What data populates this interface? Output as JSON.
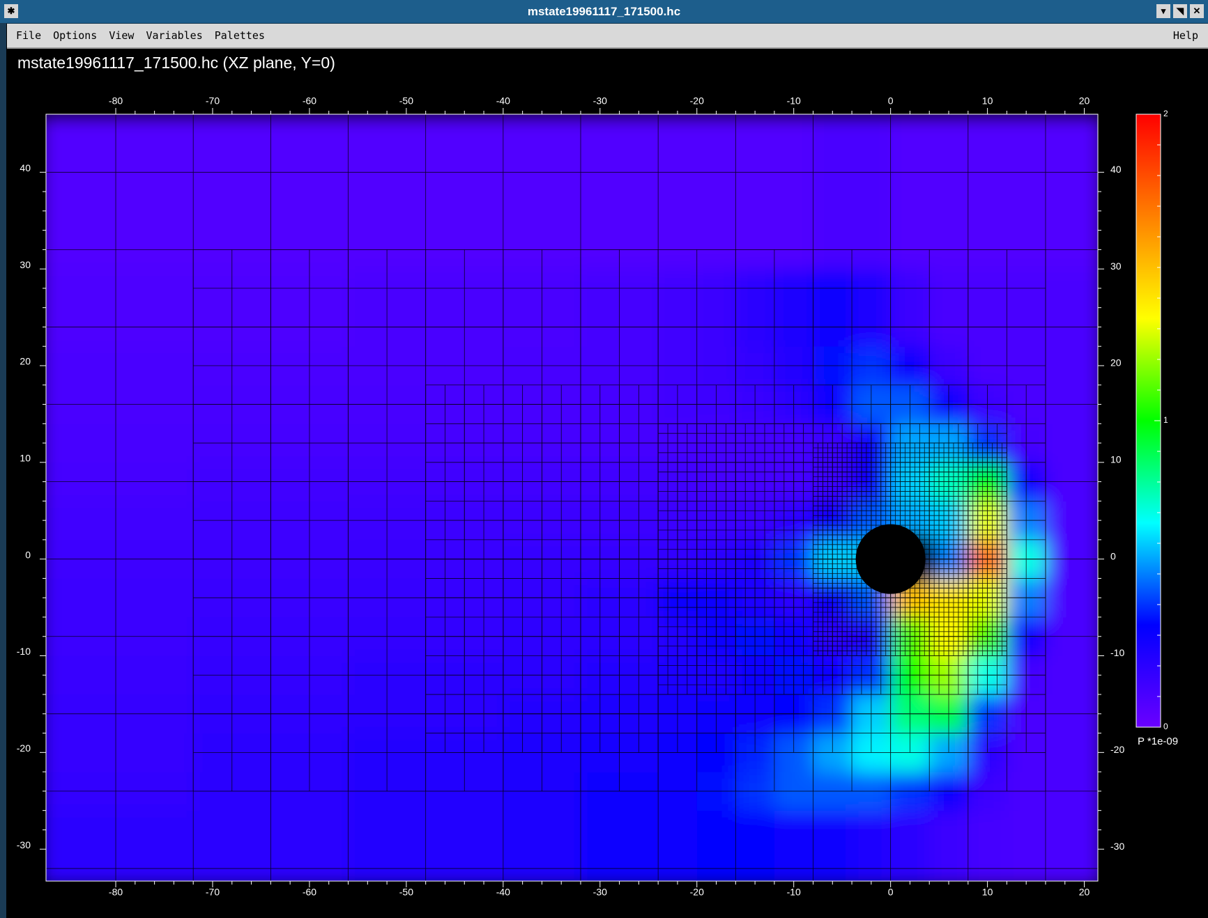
{
  "window": {
    "title": "mstate19961117_171500.hc"
  },
  "menu": {
    "items": [
      "File",
      "Options",
      "View",
      "Variables",
      "Palettes"
    ],
    "help": "Help"
  },
  "chart_data": {
    "type": "heatmap",
    "title": "mstate19961117_171500.hc (XZ plane, Y=0)",
    "x": [
      -88,
      -72,
      -56,
      -40,
      -32,
      -24,
      -20,
      -16,
      -12,
      -8,
      -4,
      0,
      4,
      8,
      12,
      16,
      22
    ],
    "y": [
      -34,
      -26,
      -22,
      -18,
      -14,
      -10,
      -6,
      -2,
      2,
      6,
      10,
      14,
      18,
      22,
      30,
      46
    ],
    "values": [
      [
        0.2,
        0.2,
        0.22,
        0.25,
        0.28,
        0.3,
        0.32,
        0.32,
        0.3,
        0.28,
        0.25,
        0.2,
        0.15,
        0.12,
        0.1,
        0.1
      ],
      [
        0.18,
        0.2,
        0.22,
        0.25,
        0.28,
        0.3,
        0.35,
        0.4,
        0.45,
        0.45,
        0.45,
        0.4,
        0.3,
        0.15,
        0.1,
        0.1
      ],
      [
        0.17,
        0.2,
        0.22,
        0.24,
        0.26,
        0.3,
        0.32,
        0.38,
        0.45,
        0.55,
        0.65,
        0.7,
        0.55,
        0.2,
        0.1,
        0.1
      ],
      [
        0.17,
        0.19,
        0.2,
        0.22,
        0.24,
        0.26,
        0.28,
        0.3,
        0.32,
        0.4,
        0.6,
        0.85,
        0.9,
        0.4,
        0.1,
        0.1
      ],
      [
        0.16,
        0.18,
        0.2,
        0.2,
        0.22,
        0.24,
        0.25,
        0.3,
        0.35,
        0.3,
        0.4,
        1.0,
        1.2,
        0.7,
        0.12,
        0.1
      ],
      [
        0.15,
        0.17,
        0.18,
        0.19,
        0.2,
        0.22,
        0.3,
        0.35,
        0.3,
        0.2,
        0.25,
        1.1,
        1.35,
        1.1,
        0.3,
        0.1
      ],
      [
        0.15,
        0.16,
        0.17,
        0.18,
        0.2,
        0.3,
        0.3,
        0.25,
        0.2,
        0.3,
        0.45,
        1.5,
        1.4,
        1.3,
        0.5,
        0.1
      ],
      [
        0.14,
        0.15,
        0.16,
        0.17,
        0.17,
        0.18,
        0.2,
        0.25,
        0.4,
        0.6,
        0.6,
        null,
        0.5,
        1.7,
        0.7,
        0.1
      ],
      [
        0.13,
        0.14,
        0.15,
        0.15,
        0.15,
        0.15,
        0.15,
        0.15,
        0.2,
        0.3,
        0.45,
        0.55,
        0.6,
        1.3,
        0.5,
        0.1
      ],
      [
        0.12,
        0.13,
        0.13,
        0.13,
        0.13,
        0.13,
        0.12,
        0.12,
        0.12,
        0.15,
        0.3,
        0.6,
        0.75,
        1.0,
        0.3,
        0.1
      ],
      [
        0.11,
        0.12,
        0.12,
        0.12,
        0.12,
        0.12,
        0.12,
        0.12,
        0.12,
        0.15,
        0.3,
        0.55,
        0.55,
        0.4,
        0.12,
        0.1
      ],
      [
        0.1,
        0.11,
        0.11,
        0.11,
        0.12,
        0.13,
        0.14,
        0.16,
        0.2,
        0.3,
        0.45,
        0.45,
        0.3,
        0.15,
        0.1,
        0.1
      ],
      [
        0.1,
        0.1,
        0.1,
        0.11,
        0.12,
        0.13,
        0.15,
        0.18,
        0.22,
        0.35,
        0.4,
        0.3,
        0.15,
        0.1,
        0.1,
        0.1
      ],
      [
        0.09,
        0.09,
        0.1,
        0.1,
        0.12,
        0.13,
        0.15,
        0.2,
        0.25,
        0.3,
        0.25,
        0.15,
        0.1,
        0.1,
        0.1,
        0.1
      ],
      [
        0.08,
        0.08,
        0.08,
        0.08,
        0.08,
        0.08,
        0.08,
        0.08,
        0.08,
        0.1,
        0.1,
        0.08,
        0.08,
        0.08,
        0.08,
        0.08
      ]
    ],
    "xlim": [
      -87.2,
      21.4
    ],
    "ylim": [
      -33.3,
      46
    ],
    "xticks": [
      -80,
      -70,
      -60,
      -50,
      -40,
      -30,
      -20,
      -10,
      0,
      10,
      20
    ],
    "yticks": [
      -30,
      -20,
      -10,
      0,
      10,
      20,
      30,
      40
    ],
    "clim": [
      0,
      2
    ],
    "cticks": [
      0,
      1,
      2
    ],
    "colorbar_label": "P *1e-09",
    "colormap": [
      "#6a00ff",
      "#0000ff",
      "#00ffff",
      "#00ff00",
      "#ffff00",
      "#ff8000",
      "#ff0000"
    ]
  }
}
